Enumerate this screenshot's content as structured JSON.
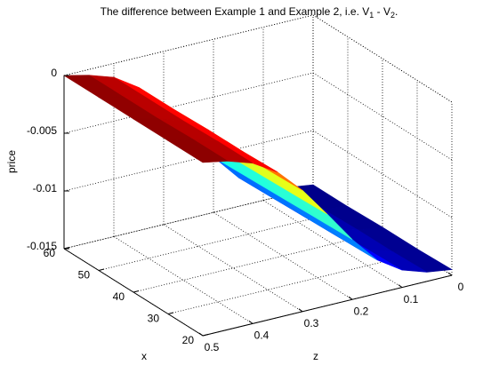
{
  "chart_data": {
    "type": "surface",
    "title": [
      "The difference between Example 1 and Example 2, i.e. V",
      "1",
      " - V",
      "2",
      "."
    ],
    "xlabel": "x",
    "ylabel": "z",
    "zlabel": "price",
    "x": [
      20,
      30,
      40,
      50,
      60
    ],
    "y": [
      0,
      0.05,
      0.1,
      0.15,
      0.2,
      0.25,
      0.3,
      0.35,
      0.4,
      0.45,
      0.5
    ],
    "values": [
      [
        -0.0145,
        -0.0142,
        -0.0135,
        -0.0121,
        -0.0098,
        -0.0071,
        -0.0045,
        -0.0024,
        -0.0011,
        -0.0004,
        0
      ],
      [
        -0.0146,
        -0.0143,
        -0.0136,
        -0.0122,
        -0.0099,
        -0.0072,
        -0.0046,
        -0.0025,
        -0.0011,
        -0.0004,
        0
      ],
      [
        -0.0146,
        -0.0143,
        -0.0137,
        -0.0123,
        -0.01,
        -0.0073,
        -0.0047,
        -0.0025,
        -0.0012,
        -0.0005,
        0
      ],
      [
        -0.0147,
        -0.0144,
        -0.0137,
        -0.0124,
        -0.0101,
        -0.0074,
        -0.0047,
        -0.0026,
        -0.0012,
        -0.0005,
        0
      ],
      [
        -0.0147,
        -0.0144,
        -0.0138,
        -0.0125,
        -0.0102,
        -0.0075,
        -0.0048,
        -0.0026,
        -0.0012,
        -0.0005,
        0
      ]
    ],
    "xlim": [
      20,
      60
    ],
    "ylim": [
      0,
      0.5
    ],
    "zlim": [
      -0.015,
      0
    ],
    "xticks": [
      20,
      30,
      40,
      50,
      60
    ],
    "yticks": [
      0,
      0.1,
      0.2,
      0.3,
      0.4,
      0.5
    ],
    "zticks": [
      -0.015,
      -0.01,
      -0.005,
      0
    ],
    "grid": true,
    "colormap": "jet"
  }
}
